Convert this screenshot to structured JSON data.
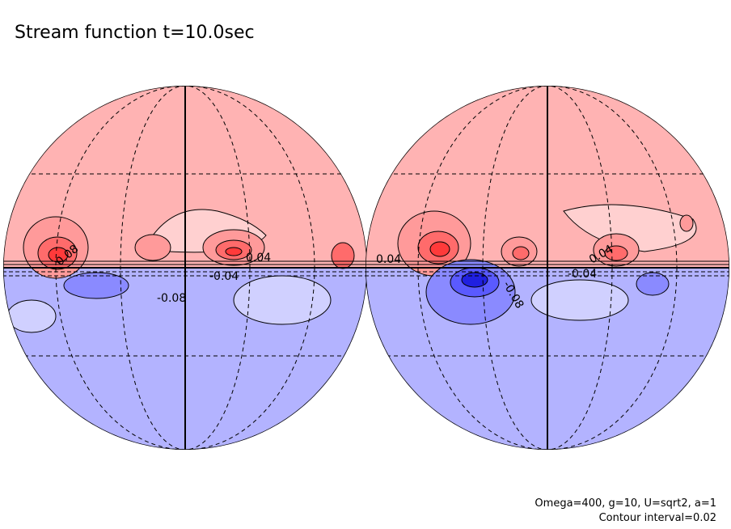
{
  "title": "Stream function t=10.0sec",
  "footer": [
    "Omega=400, g=10, U=sqrt2, a=1",
    "Contour interval=0.02"
  ],
  "contour_labels": {
    "left": [
      "0.08",
      "0.04",
      "-0.04",
      "-0.08"
    ],
    "right": [
      "0.04",
      "-0.04",
      "-0.08",
      "0.04"
    ]
  }
}
